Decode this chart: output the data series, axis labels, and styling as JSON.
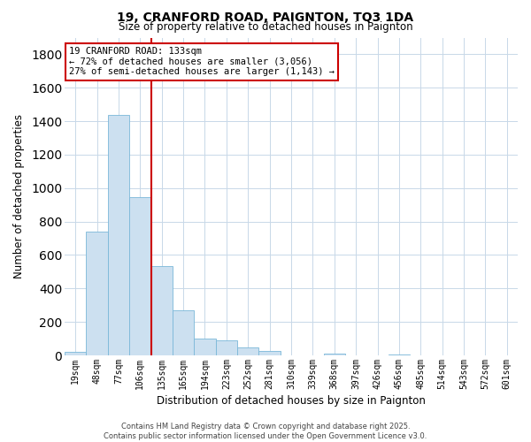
{
  "title_line1": "19, CRANFORD ROAD, PAIGNTON, TQ3 1DA",
  "title_line2": "Size of property relative to detached houses in Paignton",
  "bar_labels": [
    "19sqm",
    "48sqm",
    "77sqm",
    "106sqm",
    "135sqm",
    "165sqm",
    "194sqm",
    "223sqm",
    "252sqm",
    "281sqm",
    "310sqm",
    "339sqm",
    "368sqm",
    "397sqm",
    "426sqm",
    "456sqm",
    "485sqm",
    "514sqm",
    "543sqm",
    "572sqm",
    "601sqm"
  ],
  "bar_values": [
    20,
    740,
    1435,
    945,
    535,
    270,
    103,
    90,
    50,
    28,
    0,
    0,
    12,
    0,
    0,
    5,
    0,
    0,
    0,
    0,
    0
  ],
  "bar_color": "#cce0f0",
  "bar_edgecolor": "#7ab8d8",
  "vline_pos": 3.5,
  "vline_color": "#cc0000",
  "xlabel": "Distribution of detached houses by size in Paignton",
  "ylabel": "Number of detached properties",
  "ylim": [
    0,
    1900
  ],
  "yticks": [
    0,
    200,
    400,
    600,
    800,
    1000,
    1200,
    1400,
    1600,
    1800
  ],
  "annotation_title": "19 CRANFORD ROAD: 133sqm",
  "annotation_line1": "← 72% of detached houses are smaller (3,056)",
  "annotation_line2": "27% of semi-detached houses are larger (1,143) →",
  "annotation_box_color": "#ffffff",
  "annotation_box_edge": "#cc0000",
  "footer_line1": "Contains HM Land Registry data © Crown copyright and database right 2025.",
  "footer_line2": "Contains public sector information licensed under the Open Government Licence v3.0.",
  "background_color": "#ffffff",
  "grid_color": "#c8d8e8"
}
